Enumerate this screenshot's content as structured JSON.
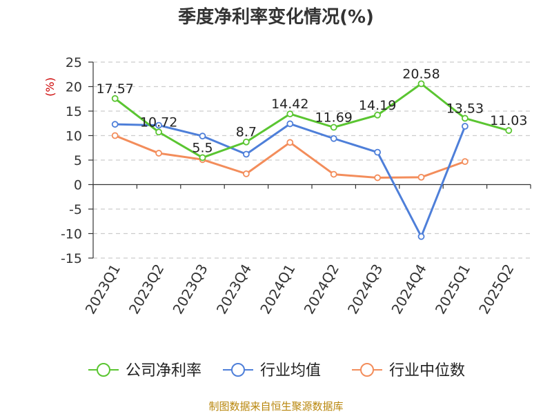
{
  "page": {
    "title": "季度净利率变化情况(%)",
    "source": "制图数据来自恒生聚源数据库"
  },
  "chart_data": {
    "type": "line",
    "title": "季度净利率变化情况(%)",
    "ylabel": "(%)",
    "xlabel": "",
    "categories": [
      "2023Q1",
      "2023Q2",
      "2023Q3",
      "2023Q4",
      "2024Q1",
      "2024Q2",
      "2024Q3",
      "2024Q4",
      "2025Q1",
      "2025Q2"
    ],
    "ylim": [
      -15,
      25
    ],
    "yticks": [
      25,
      20,
      15,
      10,
      5,
      0,
      -5,
      -10,
      -15
    ],
    "grid": true,
    "legend_position": "bottom",
    "series": [
      {
        "name": "公司净利率",
        "color": "#5ac531",
        "show_labels": true,
        "values": [
          17.57,
          10.72,
          5.5,
          8.7,
          14.42,
          11.69,
          14.19,
          20.58,
          13.53,
          11.03
        ],
        "labels": [
          "17.57",
          "10.72",
          "5.5",
          "8.7",
          "14.42",
          "11.69",
          "14.19",
          "20.58",
          "13.53",
          "11.03"
        ]
      },
      {
        "name": "行业均值",
        "color": "#4e7fd9",
        "show_labels": false,
        "values": [
          12.3,
          12.1,
          9.9,
          6.2,
          12.4,
          9.4,
          6.6,
          -10.6,
          11.9,
          null
        ]
      },
      {
        "name": "行业中位数",
        "color": "#f38d5b",
        "show_labels": false,
        "values": [
          10.0,
          6.4,
          5.1,
          2.2,
          8.6,
          2.1,
          1.4,
          1.5,
          4.7,
          null
        ]
      }
    ]
  }
}
